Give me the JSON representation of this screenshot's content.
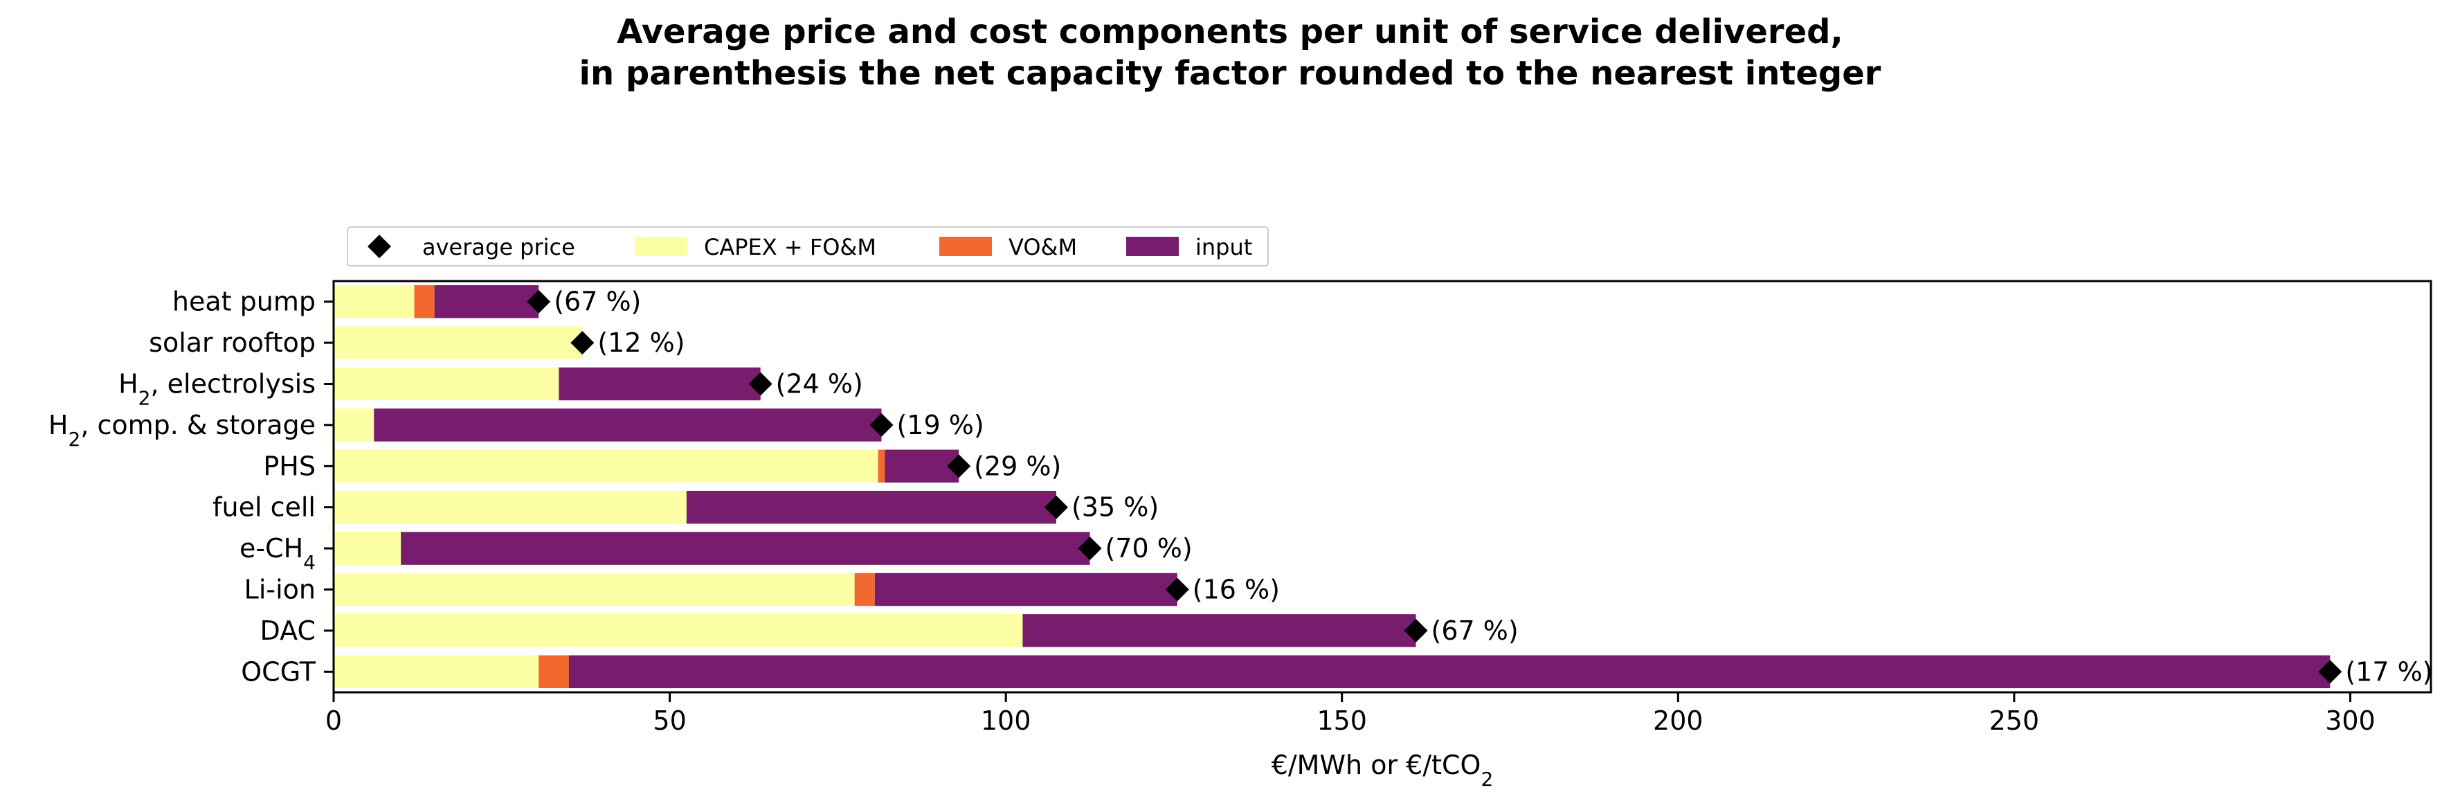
{
  "chart_data": {
    "type": "bar",
    "orientation": "horizontal",
    "stacked": true,
    "title": "Average price and cost components per unit of service delivered,\nin parenthesis the net capacity factor rounded to the nearest integer",
    "xlabel": "€/MWh or €/tCO",
    "xlabel_sub": "2",
    "xlim": [
      0,
      312
    ],
    "xticks": [
      0,
      50,
      100,
      150,
      200,
      250,
      300
    ],
    "grid": false,
    "legend_position": "top-left",
    "categories": [
      {
        "main": "heat pump",
        "sub": "",
        "tail": ""
      },
      {
        "main": "solar rooftop",
        "sub": "",
        "tail": ""
      },
      {
        "main": "H",
        "sub": "2",
        "tail": ", electrolysis"
      },
      {
        "main": "H",
        "sub": "2",
        "tail": ", comp. & storage"
      },
      {
        "main": "PHS",
        "sub": "",
        "tail": ""
      },
      {
        "main": "fuel cell",
        "sub": "",
        "tail": ""
      },
      {
        "main": "e-CH",
        "sub": "4",
        "tail": ""
      },
      {
        "main": "Li-ion",
        "sub": "",
        "tail": ""
      },
      {
        "main": "DAC",
        "sub": "",
        "tail": ""
      },
      {
        "main": "OCGT",
        "sub": "",
        "tail": ""
      }
    ],
    "series": [
      {
        "name": "CAPEX + FO&M",
        "color": "#fcffa4",
        "values": [
          12,
          37,
          33.5,
          6,
          81,
          52.5,
          10,
          77.5,
          102.5,
          30.5
        ]
      },
      {
        "name": "VO&M",
        "color": "#f1692c",
        "values": [
          3,
          0,
          0,
          0,
          1,
          0,
          0,
          3,
          0,
          4.5
        ]
      },
      {
        "name": "input",
        "color": "#781c6d",
        "values": [
          15.5,
          0,
          30,
          75.5,
          11,
          55,
          102.5,
          45,
          58.5,
          262
        ]
      }
    ],
    "average_price": {
      "name": "average price",
      "color": "#000000",
      "values": [
        30.5,
        37,
        63.5,
        81.5,
        93,
        107.5,
        112.5,
        125.5,
        161,
        297
      ]
    },
    "annotations": [
      "(67 %)",
      "(12 %)",
      "(24 %)",
      "(19 %)",
      "(29 %)",
      "(35 %)",
      "(70 %)",
      "(16 %)",
      "(67 %)",
      "(17 %)"
    ]
  }
}
